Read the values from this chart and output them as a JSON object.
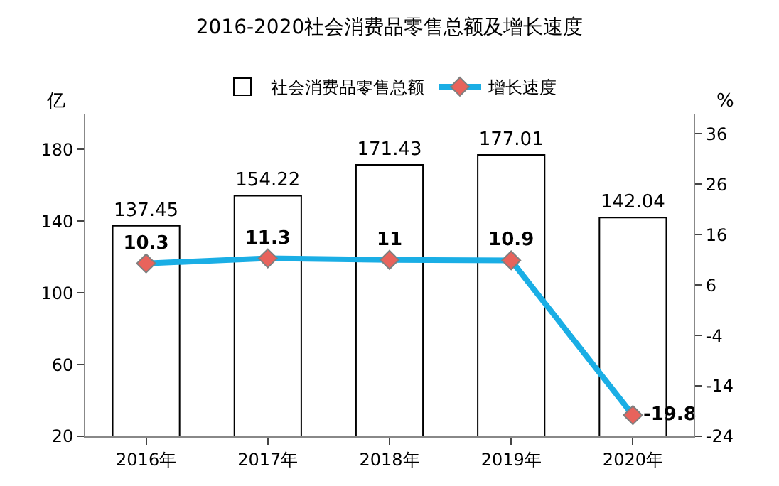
{
  "chart_data": {
    "type": "bar",
    "title": "2016-2020社会消费品零售总额及增长速度",
    "ylabel": "亿",
    "y2label": "%",
    "categories": [
      "2016年",
      "2017年",
      "2018年",
      "2019年",
      "2020年"
    ],
    "series": [
      {
        "name": "社会消费品零售总额",
        "color": "#ffffff",
        "values": [
          137.45,
          154.22,
          171.43,
          177.01,
          142.04
        ]
      },
      {
        "name": "增长速度",
        "type": "line",
        "axis": "y2",
        "color": "#1aaee5",
        "values": [
          10.3,
          11.3,
          11,
          10.9,
          -19.8
        ]
      }
    ],
    "ylim": [
      20,
      200
    ],
    "yticks": [
      20,
      60,
      100,
      140,
      180
    ],
    "y2lim": [
      -24,
      40
    ],
    "y2ticks": [
      -24,
      -14,
      -4,
      6,
      16,
      26,
      36
    ],
    "data_labels": true,
    "legend": "top",
    "marker": "diamond",
    "line_style": "solid"
  }
}
